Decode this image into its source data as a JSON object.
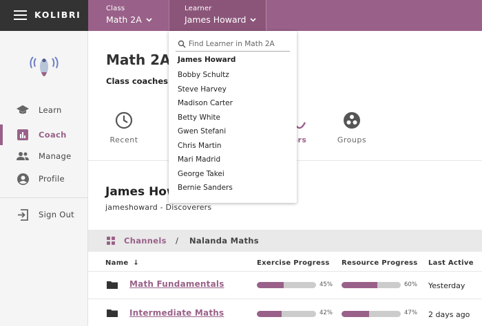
{
  "brand": "KOLIBRI",
  "appbar": {
    "class_caption": "Class",
    "class_value": "Math 2A",
    "learner_caption": "Learner",
    "learner_value": "James Howard"
  },
  "sidebar": {
    "items": [
      {
        "label": "Learn",
        "icon": "mortarboard-icon"
      },
      {
        "label": "Coach",
        "icon": "bar-chart-icon"
      },
      {
        "label": "Manage",
        "icon": "people-icon"
      },
      {
        "label": "Profile",
        "icon": "person-icon"
      },
      {
        "label": "Sign Out",
        "icon": "sign-out-icon"
      }
    ]
  },
  "main": {
    "class_title": "Math 2A",
    "coaches_label": "Class coaches:",
    "tabs": [
      {
        "label": "Recent",
        "icon": "clock-icon"
      },
      {
        "label": "ers",
        "icon": "face-icon"
      },
      {
        "label": "Groups",
        "icon": "groups-icon"
      }
    ],
    "learner_title": "James How",
    "learner_subtitle": "jameshoward - Discoverers",
    "breadcrumb": {
      "link": "Channels",
      "separator": "/",
      "current": "Nalanda Maths"
    },
    "table": {
      "headers": {
        "name": "Name",
        "exercise": "Exercise Progress",
        "resource": "Resource Progress",
        "last_active": "Last Active"
      },
      "rows": [
        {
          "name": "Math Fundamentals",
          "exercise": 0.45,
          "exercise_text": "45%",
          "resource": 0.6,
          "resource_text": "60%",
          "last_active": "Yesterday"
        },
        {
          "name": "Intermediate Maths",
          "exercise": 0.42,
          "exercise_text": "42%",
          "resource": 0.47,
          "resource_text": "47%",
          "last_active": "2 days ago"
        }
      ]
    }
  },
  "dropdown": {
    "placeholder": "Find Learner in Math 2A",
    "selected": "James Howard",
    "options": [
      "Bobby Schultz",
      "Steve Harvey",
      "Madison Carter",
      "Betty White",
      "Gwen Stefani",
      "Chris Martin",
      "Mari Madrid",
      "George Takei",
      "Bernie Sanders"
    ]
  },
  "colors": {
    "brand": "#996189",
    "sidebar_dark": "#333333"
  }
}
